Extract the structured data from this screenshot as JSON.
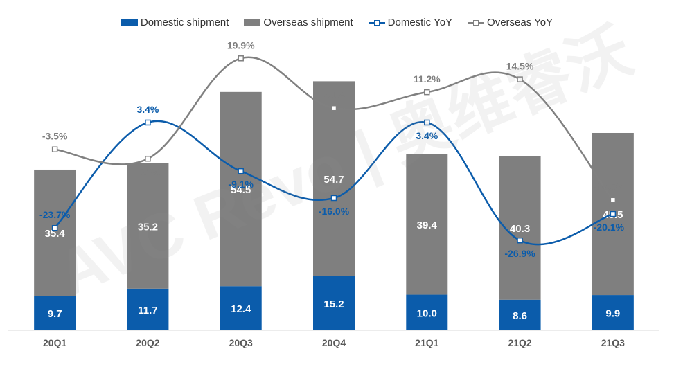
{
  "chart_data": {
    "type": "bar",
    "categories": [
      "20Q1",
      "20Q2",
      "20Q3",
      "20Q4",
      "21Q1",
      "21Q2",
      "21Q3"
    ],
    "series": [
      {
        "name": "Domestic shipment",
        "kind": "bar",
        "stacked": true,
        "color": "#0b5cab",
        "values": [
          9.7,
          11.7,
          12.4,
          15.2,
          10.0,
          8.6,
          9.9
        ],
        "labels": [
          "9.7",
          "11.7",
          "12.4",
          "15.2",
          "10.0",
          "8.6",
          "9.9"
        ]
      },
      {
        "name": "Overseas shipment",
        "kind": "bar",
        "stacked": true,
        "color": "#7f7f7f",
        "values": [
          35.4,
          35.2,
          54.5,
          54.7,
          39.4,
          40.3,
          45.5
        ],
        "labels": [
          "35.4",
          "35.2",
          "54.5",
          "54.7",
          "39.4",
          "40.3",
          "45.5"
        ]
      },
      {
        "name": "Domestic YoY",
        "kind": "line",
        "axis": "secondary",
        "color": "#0b5cab",
        "values": [
          -23.7,
          3.4,
          -9.1,
          -16.0,
          3.4,
          -26.9,
          -20.1
        ],
        "labels": [
          "-23.7%",
          "3.4%",
          "-9.1%",
          "-16.0%",
          "3.4%",
          "-26.9%",
          "-20.1%"
        ]
      },
      {
        "name": "Overseas YoY",
        "kind": "line",
        "axis": "secondary",
        "color": "#808080",
        "values": [
          -3.5,
          -5.9,
          19.9,
          7.1,
          11.2,
          14.5,
          -16.5
        ],
        "labels": [
          "-3.5%",
          "-5.9%",
          "19.9%",
          "7.1%",
          "11.2%",
          "14.5%",
          "-16.5%"
        ]
      }
    ],
    "ylim": [
      0,
      83
    ],
    "y2lim": [
      -50,
      26
    ],
    "grid": false,
    "legend_position": "top"
  },
  "watermark": {
    "text": "AVC Revo | 奥维睿沃"
  }
}
